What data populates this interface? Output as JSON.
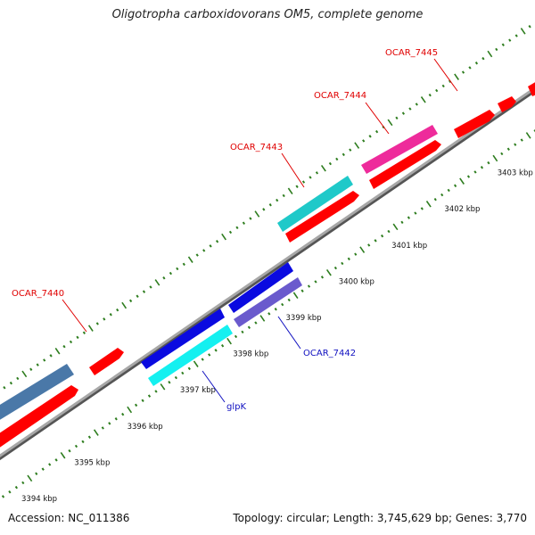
{
  "title": "Oligotropha carboxidovorans OM5, complete genome",
  "footer": {
    "accession": "Accession: NC_011386",
    "summary": "Topology: circular; Length: 3,745,629 bp; Genes: 3,770"
  },
  "colors": {
    "backbone": "#8c8c8c",
    "tick": "#2e7d1f",
    "label_red": "#e00000",
    "label_blue": "#1010c0"
  },
  "scale_ticks": [
    {
      "label": "3394 kbp"
    },
    {
      "label": "3395 kbp"
    },
    {
      "label": "3396 kbp"
    },
    {
      "label": "3397 kbp"
    },
    {
      "label": "3398 kbp"
    },
    {
      "label": "3399 kbp"
    },
    {
      "label": "3400 kbp"
    },
    {
      "label": "3401 kbp"
    },
    {
      "label": "3402 kbp"
    },
    {
      "label": "3403 kbp"
    }
  ],
  "genes": [
    {
      "name": "OCAR_7440",
      "color": "#e00000",
      "strand": "forward"
    },
    {
      "name": "OCAR_7443",
      "color": "#e00000",
      "strand": "forward"
    },
    {
      "name": "OCAR_7444",
      "color": "#e00000",
      "strand": "forward"
    },
    {
      "name": "OCAR_7445",
      "color": "#e00000",
      "strand": "forward"
    },
    {
      "name": "glpK",
      "color": "#0000e0",
      "strand": "reverse"
    },
    {
      "name": "OCAR_7442",
      "color": "#0000e0",
      "strand": "reverse"
    }
  ]
}
